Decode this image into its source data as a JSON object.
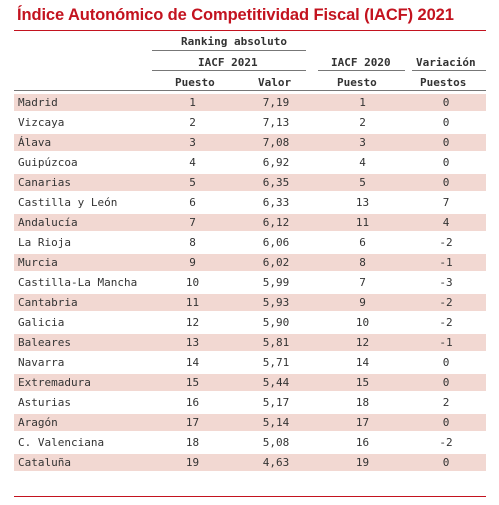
{
  "title": "Índice Autonómico de Competitividad Fiscal (IACF) 2021",
  "header": {
    "group": "Ranking absoluto",
    "iacf2021": "IACF 2021",
    "iacf2020": "IACF 2020",
    "variacion": "Variación",
    "col_puesto": "Puesto",
    "col_valor": "Valor",
    "col_puesto_2020": "Puesto",
    "col_puestos": "Puestos"
  },
  "chart_data": {
    "type": "table",
    "title": "Índice Autonómico de Competitividad Fiscal (IACF) 2021",
    "columns": [
      "",
      "Puesto",
      "Valor",
      "Puesto",
      "Puestos"
    ],
    "rows": [
      {
        "region": "Madrid",
        "puesto_2021": "1",
        "valor_2021": "7,19",
        "puesto_2020": "1",
        "variacion": "0"
      },
      {
        "region": "Vizcaya",
        "puesto_2021": "2",
        "valor_2021": "7,13",
        "puesto_2020": "2",
        "variacion": "0"
      },
      {
        "region": "Álava",
        "puesto_2021": "3",
        "valor_2021": "7,08",
        "puesto_2020": "3",
        "variacion": "0"
      },
      {
        "region": "Guipúzcoa",
        "puesto_2021": "4",
        "valor_2021": "6,92",
        "puesto_2020": "4",
        "variacion": "0"
      },
      {
        "region": "Canarias",
        "puesto_2021": "5",
        "valor_2021": "6,35",
        "puesto_2020": "5",
        "variacion": "0"
      },
      {
        "region": "Castilla y León",
        "puesto_2021": "6",
        "valor_2021": "6,33",
        "puesto_2020": "13",
        "variacion": "7"
      },
      {
        "region": "Andalucía",
        "puesto_2021": "7",
        "valor_2021": "6,12",
        "puesto_2020": "11",
        "variacion": "4"
      },
      {
        "region": "La Rioja",
        "puesto_2021": "8",
        "valor_2021": "6,06",
        "puesto_2020": "6",
        "variacion": "-2"
      },
      {
        "region": "Murcia",
        "puesto_2021": "9",
        "valor_2021": "6,02",
        "puesto_2020": "8",
        "variacion": "-1"
      },
      {
        "region": "Castilla-La Mancha",
        "puesto_2021": "10",
        "valor_2021": "5,99",
        "puesto_2020": "7",
        "variacion": "-3"
      },
      {
        "region": "Cantabria",
        "puesto_2021": "11",
        "valor_2021": "5,93",
        "puesto_2020": "9",
        "variacion": "-2"
      },
      {
        "region": "Galicia",
        "puesto_2021": "12",
        "valor_2021": "5,90",
        "puesto_2020": "10",
        "variacion": "-2"
      },
      {
        "region": "Baleares",
        "puesto_2021": "13",
        "valor_2021": "5,81",
        "puesto_2020": "12",
        "variacion": "-1"
      },
      {
        "region": "Navarra",
        "puesto_2021": "14",
        "valor_2021": "5,71",
        "puesto_2020": "14",
        "variacion": "0"
      },
      {
        "region": "Extremadura",
        "puesto_2021": "15",
        "valor_2021": "5,44",
        "puesto_2020": "15",
        "variacion": "0"
      },
      {
        "region": "Asturias",
        "puesto_2021": "16",
        "valor_2021": "5,17",
        "puesto_2020": "18",
        "variacion": "2"
      },
      {
        "region": "Aragón",
        "puesto_2021": "17",
        "valor_2021": "5,14",
        "puesto_2020": "17",
        "variacion": "0"
      },
      {
        "region": "C. Valenciana",
        "puesto_2021": "18",
        "valor_2021": "5,08",
        "puesto_2020": "16",
        "variacion": "-2"
      },
      {
        "region": "Cataluña",
        "puesto_2021": "19",
        "valor_2021": "4,63",
        "puesto_2020": "19",
        "variacion": "0"
      }
    ]
  }
}
